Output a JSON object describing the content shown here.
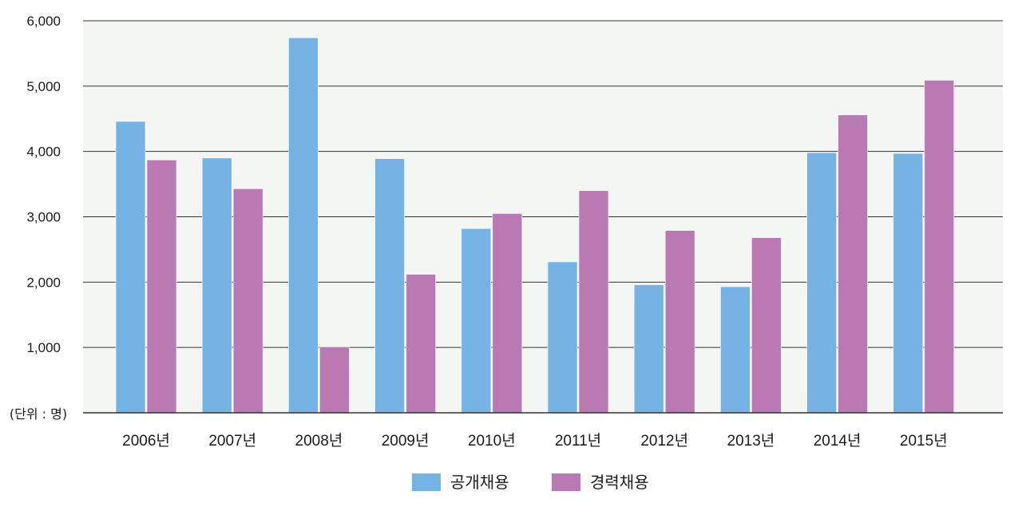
{
  "chart_data": {
    "type": "bar",
    "title": "",
    "xlabel": "",
    "ylabel": "",
    "unit_label": "(단위 : 명)",
    "categories": [
      "2006년",
      "2007년",
      "2008년",
      "2009년",
      "2010년",
      "2011년",
      "2012년",
      "2013년",
      "2014년",
      "2015년"
    ],
    "series": [
      {
        "name": "공개채용",
        "color": "#74b3e3",
        "values": [
          4460,
          3900,
          5740,
          3890,
          2820,
          2310,
          1960,
          1930,
          3980,
          3970
        ]
      },
      {
        "name": "경력채용",
        "color": "#b97ab4",
        "values": [
          3870,
          3430,
          1010,
          2120,
          3050,
          3400,
          2790,
          2680,
          4560,
          5090
        ]
      }
    ],
    "ylim": [
      0,
      6000
    ],
    "yticks": [
      1000,
      2000,
      3000,
      4000,
      5000,
      6000
    ],
    "ytick_labels": [
      "1,000",
      "2,000",
      "3,000",
      "4,000",
      "5,000",
      "6,000"
    ],
    "grid": true,
    "legend_position": "bottom-center",
    "plot_background": "#f4f6f4"
  }
}
